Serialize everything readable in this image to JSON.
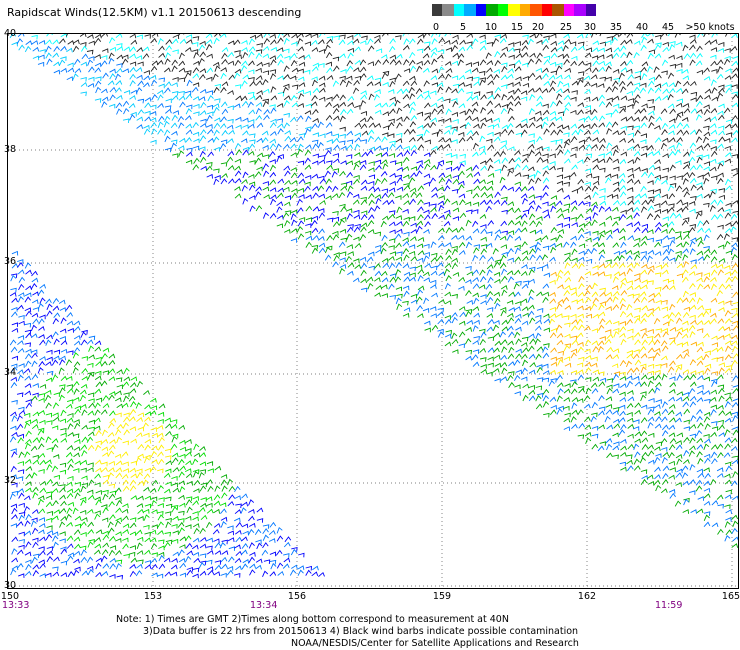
{
  "title": "Rapidscat Winds(12.5KM) v1.1 20150613 descending",
  "legend": {
    "labels": [
      "0",
      "5",
      "10",
      "15",
      "20",
      "25",
      "30",
      "35",
      "40",
      "45",
      ">50 knots"
    ],
    "colors": [
      "#3a3a3a",
      "#8a8a8a",
      "#00ffff",
      "#00aaff",
      "#0000ff",
      "#00aa00",
      "#00ff00",
      "#ffff00",
      "#ffaa00",
      "#ff5500",
      "#ff0000",
      "#aa5500",
      "#ff00ff",
      "#aa00ff",
      "#4400aa"
    ]
  },
  "map": {
    "lat_labels": [
      "40",
      "38",
      "36",
      "34",
      "32",
      "30"
    ],
    "lon_labels": [
      "150",
      "153",
      "156",
      "159",
      "162",
      "165"
    ],
    "times": [
      "13:33",
      "13:34",
      "11:59"
    ],
    "lat_range": [
      30,
      40
    ],
    "lon_range": [
      150,
      165
    ]
  },
  "notes": {
    "line1": "Note: 1) Times are GMT 2)Times along bottom correspond to measurement at 40N",
    "line2": "3)Data buffer is 22 hrs from 20150613 4) Black wind barbs indicate possible contamination",
    "line3": "NOAA/NESDIS/Center for Satellite Applications and Research"
  }
}
